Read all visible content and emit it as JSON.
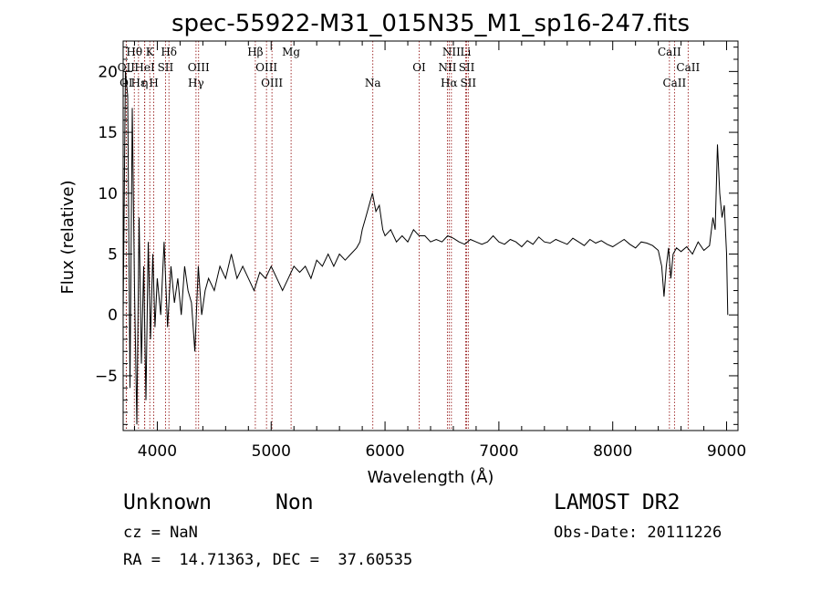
{
  "chart_data": {
    "type": "line",
    "title": "spec-55922-M31_015N35_M1_sp16-247.fits",
    "xlabel": "Wavelength (Å)",
    "ylabel": "Flux (relative)",
    "xlim": [
      3700,
      9100
    ],
    "ylim": [
      -9.5,
      22.5
    ],
    "x_ticks": [
      4000,
      5000,
      6000,
      7000,
      8000,
      9000
    ],
    "y_ticks": [
      -5,
      0,
      5,
      10,
      15,
      20
    ],
    "grid": false,
    "series": [
      {
        "x": [
          3700,
          3720,
          3740,
          3760,
          3780,
          3800,
          3820,
          3840,
          3860,
          3880,
          3900,
          3920,
          3940,
          3960,
          3980,
          4000,
          4030,
          4060,
          4090,
          4120,
          4150,
          4180,
          4210,
          4240,
          4270,
          4300,
          4330,
          4360,
          4390,
          4420,
          4450,
          4500,
          4550,
          4600,
          4650,
          4700,
          4750,
          4800,
          4850,
          4900,
          4950,
          5000,
          5050,
          5100,
          5150,
          5200,
          5250,
          5300,
          5350,
          5400,
          5450,
          5500,
          5550,
          5600,
          5650,
          5700,
          5750,
          5780,
          5800,
          5830,
          5860,
          5890,
          5920,
          5950,
          5980,
          6000,
          6050,
          6100,
          6150,
          6200,
          6250,
          6300,
          6350,
          6400,
          6450,
          6500,
          6550,
          6600,
          6650,
          6700,
          6750,
          6800,
          6850,
          6900,
          6950,
          7000,
          7050,
          7100,
          7150,
          7200,
          7250,
          7300,
          7350,
          7400,
          7450,
          7500,
          7550,
          7600,
          7650,
          7700,
          7750,
          7800,
          7850,
          7900,
          7950,
          8000,
          8050,
          8100,
          8150,
          8200,
          8250,
          8300,
          8350,
          8400,
          8430,
          8450,
          8470,
          8490,
          8510,
          8530,
          8560,
          8600,
          8650,
          8700,
          8750,
          8800,
          8850,
          8880,
          8900,
          8920,
          8940,
          8960,
          8980,
          9000,
          9010
        ],
        "y": [
          0,
          20,
          18,
          -6,
          17,
          2,
          -9,
          8,
          -4,
          4,
          -7,
          6,
          -2,
          5,
          -1,
          3,
          0,
          6,
          -1,
          4,
          1,
          3,
          0,
          4,
          2,
          1,
          -3,
          4,
          0,
          2,
          3,
          2,
          4,
          3,
          5,
          3,
          4,
          3,
          2,
          3.5,
          3,
          4,
          3,
          2,
          3,
          4,
          3.5,
          4,
          3,
          4.5,
          4,
          5,
          4,
          5,
          4.5,
          5,
          5.5,
          6,
          7,
          8,
          9,
          10,
          8.5,
          9,
          7,
          6.5,
          7,
          6,
          6.5,
          6,
          7,
          6.5,
          6.5,
          6,
          6.2,
          6,
          6.5,
          6.3,
          6,
          5.8,
          6.2,
          6,
          5.8,
          6,
          6.5,
          6,
          5.8,
          6.2,
          6,
          5.6,
          6.1,
          5.8,
          6.4,
          6,
          5.9,
          6.2,
          6,
          5.8,
          6.3,
          6,
          5.7,
          6.2,
          5.9,
          6.1,
          5.8,
          5.6,
          5.9,
          6.2,
          5.8,
          5.5,
          6,
          5.9,
          5.7,
          5.3,
          4,
          1.5,
          4,
          5.5,
          3,
          5,
          5.5,
          5.2,
          5.6,
          5,
          6,
          5.3,
          5.7,
          8,
          7,
          14,
          10,
          8,
          9,
          5,
          0
        ]
      }
    ],
    "emission_lines": [
      {
        "label": "Hθ",
        "x": 3798,
        "row": 0
      },
      {
        "label": "K",
        "x": 3934,
        "row": 0
      },
      {
        "label": "Hδ",
        "x": 4102,
        "row": 0
      },
      {
        "label": "Hβ",
        "x": 4861,
        "row": 0
      },
      {
        "label": "Mg",
        "x": 5175,
        "row": 0
      },
      {
        "label": "NII",
        "x": 6583,
        "row": 0
      },
      {
        "label": "Li",
        "x": 6708,
        "row": 0
      },
      {
        "label": "CaII",
        "x": 8498,
        "row": 0
      },
      {
        "label": "OII",
        "x": 3727,
        "row": 1
      },
      {
        "label": "HeI",
        "x": 3889,
        "row": 1
      },
      {
        "label": "SII",
        "x": 4072,
        "row": 1
      },
      {
        "label": "OIII",
        "x": 4363,
        "row": 1
      },
      {
        "label": "OIII",
        "x": 4959,
        "row": 1
      },
      {
        "label": "OI",
        "x": 6300,
        "row": 1
      },
      {
        "label": "NII",
        "x": 6548,
        "row": 1
      },
      {
        "label": "SII",
        "x": 6717,
        "row": 1
      },
      {
        "label": "CaII",
        "x": 8662,
        "row": 1
      },
      {
        "label": "OI",
        "x": 3727,
        "row": 2
      },
      {
        "label": "Hε",
        "x": 3835,
        "row": 2
      },
      {
        "label": "η",
        "x": 3890,
        "row": 2
      },
      {
        "label": "H",
        "x": 3969,
        "row": 2
      },
      {
        "label": "Hγ",
        "x": 4340,
        "row": 2
      },
      {
        "label": "OIII",
        "x": 5007,
        "row": 2
      },
      {
        "label": "Na",
        "x": 5893,
        "row": 2
      },
      {
        "label": "Hα",
        "x": 6563,
        "row": 2
      },
      {
        "label": "SII",
        "x": 6731,
        "row": 2
      },
      {
        "label": "CaII",
        "x": 8542,
        "row": 2
      }
    ],
    "line_color": "#000000",
    "marker_color": "#8b0000"
  },
  "info": {
    "class": "Unknown",
    "subclass": "Non",
    "survey": "LAMOST DR2",
    "cz": "cz = NaN",
    "obs_date": "Obs-Date: 20111226",
    "radec": "RA =  14.71363, DEC =  37.60535"
  }
}
